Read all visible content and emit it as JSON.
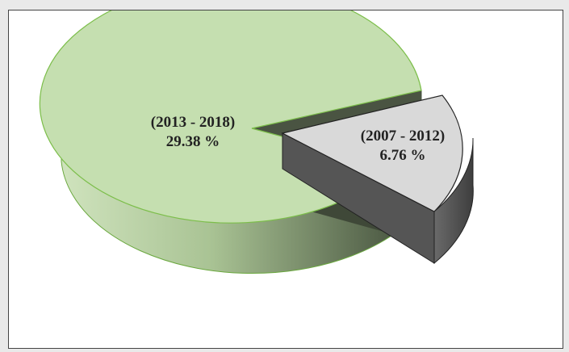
{
  "chart_data": {
    "type": "pie",
    "style": "3d-exploded",
    "slices": [
      {
        "label": "(2013 - 2018)",
        "value_text": "29.38 %",
        "value": 29.38,
        "color": "#c5dfb0",
        "edge_color": "#7cbe4a",
        "side_color": "#8aa87a"
      },
      {
        "label": "(2007 - 2012)",
        "value_text": "6.76 %",
        "value": 6.76,
        "color": "#d9d9d9",
        "edge_color": "#222222",
        "side_color": "#555555",
        "exploded": true
      }
    ]
  }
}
